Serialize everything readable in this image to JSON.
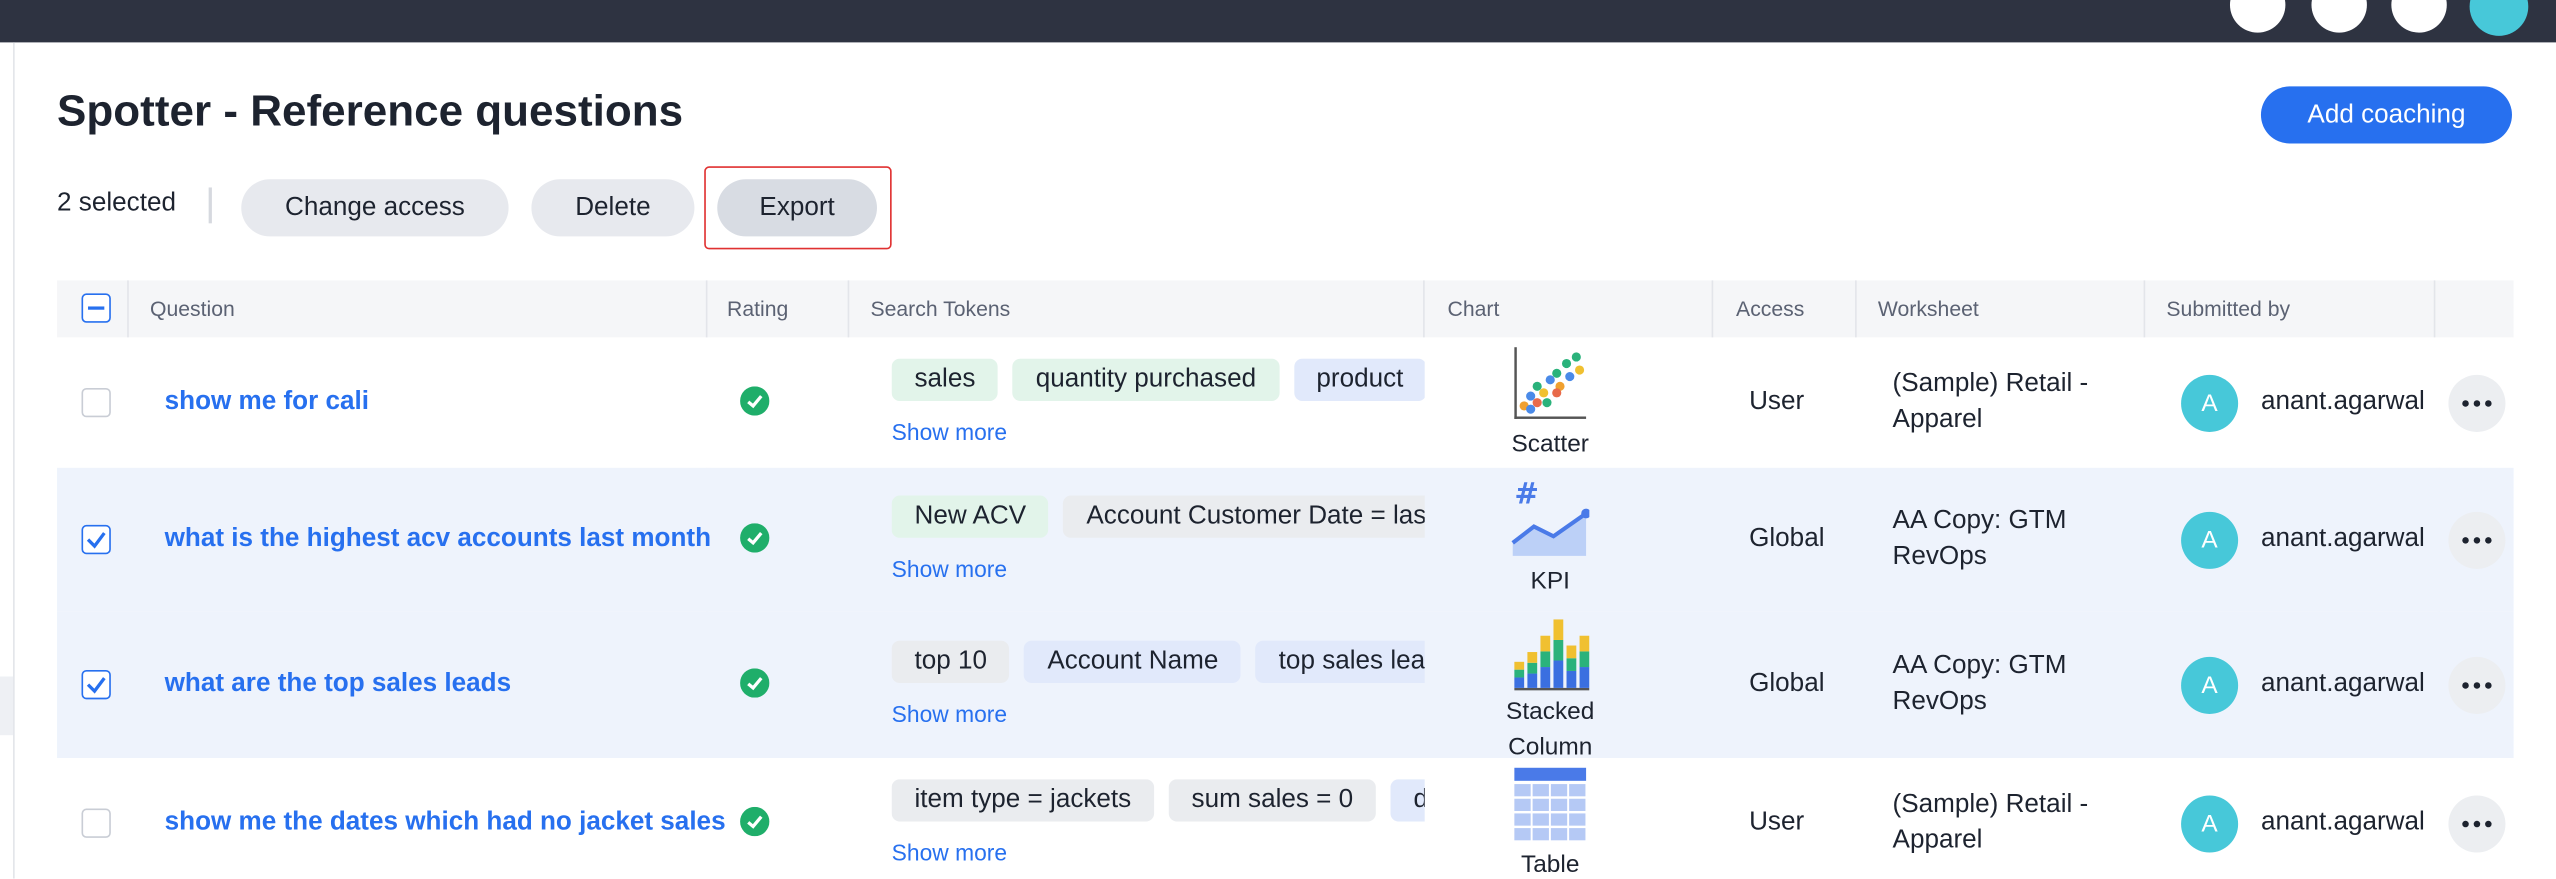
{
  "header": {
    "title": "Spotter - Reference questions",
    "add_button": "Add coaching"
  },
  "toolbar": {
    "selected": "2 selected",
    "buttons": [
      "Change access",
      "Delete",
      "Export"
    ]
  },
  "table": {
    "columns": [
      "Question",
      "Rating",
      "Search Tokens",
      "Chart",
      "Access",
      "Worksheet",
      "Submitted by"
    ],
    "rows": [
      {
        "selected": false,
        "question": "show me for cali",
        "tokens": [
          {
            "text": "sales",
            "color": "#e2f4ea"
          },
          {
            "text": "quantity purchased",
            "color": "#e2f4ea"
          },
          {
            "text": "product",
            "color": "#e1e9fb"
          }
        ],
        "show_more": "Show more",
        "chart": "Scatter",
        "access": "User",
        "worksheet": "(Sample) Retail - Apparel",
        "avatar": "A",
        "submitted_by": "anant.agarwal"
      },
      {
        "selected": true,
        "question": "what is the highest acv accounts last month",
        "tokens": [
          {
            "text": "New ACV",
            "color": "#e2f4ea"
          },
          {
            "text": "Account Customer Date = las",
            "color": "#eaecef"
          }
        ],
        "show_more": "Show more",
        "chart": "KPI",
        "access": "Global",
        "worksheet": "AA Copy: GTM RevOps",
        "avatar": "A",
        "submitted_by": "anant.agarwal"
      },
      {
        "selected": true,
        "question": "what are the top sales leads",
        "tokens": [
          {
            "text": "top 10",
            "color": "#eaecef"
          },
          {
            "text": "Account Name",
            "color": "#e1e9fb"
          },
          {
            "text": "top sales lea",
            "color": "#e1e9fb"
          }
        ],
        "show_more": "Show more",
        "chart": "Stacked Column",
        "access": "Global",
        "worksheet": "AA Copy: GTM RevOps",
        "avatar": "A",
        "submitted_by": "anant.agarwal"
      },
      {
        "selected": false,
        "question": "show me the dates which had no jacket sales",
        "tokens": [
          {
            "text": "item type = jackets",
            "color": "#eaecef"
          },
          {
            "text": "sum sales = 0",
            "color": "#eaecef"
          },
          {
            "text": "d",
            "color": "#e1e9fb"
          }
        ],
        "show_more": "Show more",
        "chart": "Table",
        "access": "User",
        "worksheet": "(Sample) Retail - Apparel",
        "avatar": "A",
        "submitted_by": "anant.agarwal"
      }
    ]
  }
}
